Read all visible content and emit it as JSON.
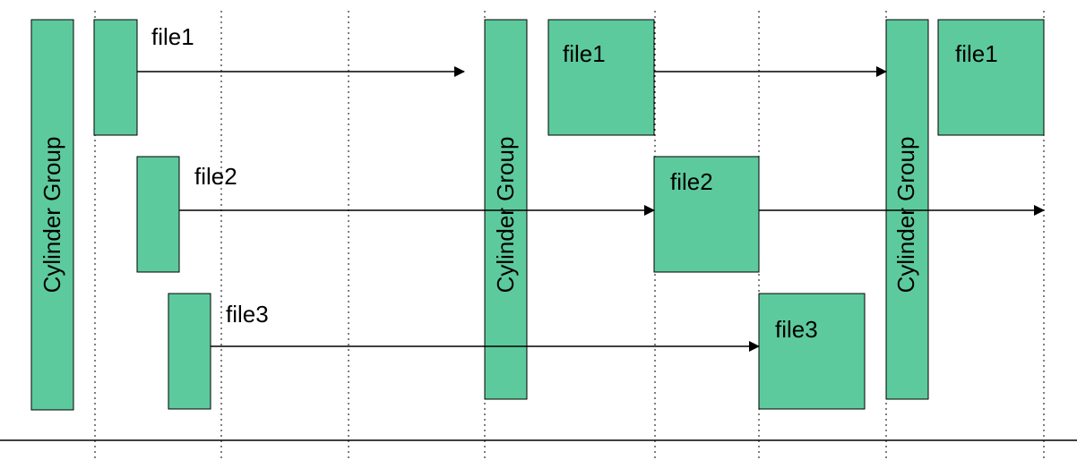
{
  "colors": {
    "block_fill": "#5dca9d",
    "block_stroke": "#000000",
    "line": "#000000",
    "grid": "#000000"
  },
  "cylinder_groups": [
    {
      "label": "Cylinder Group"
    },
    {
      "label": "Cylinder Group"
    },
    {
      "label": "Cylinder Group"
    }
  ],
  "files": [
    {
      "label": "file1"
    },
    {
      "label": "file2"
    },
    {
      "label": "file3"
    }
  ],
  "file_block_labels": [
    "file1",
    "file2",
    "file3",
    "file1"
  ]
}
